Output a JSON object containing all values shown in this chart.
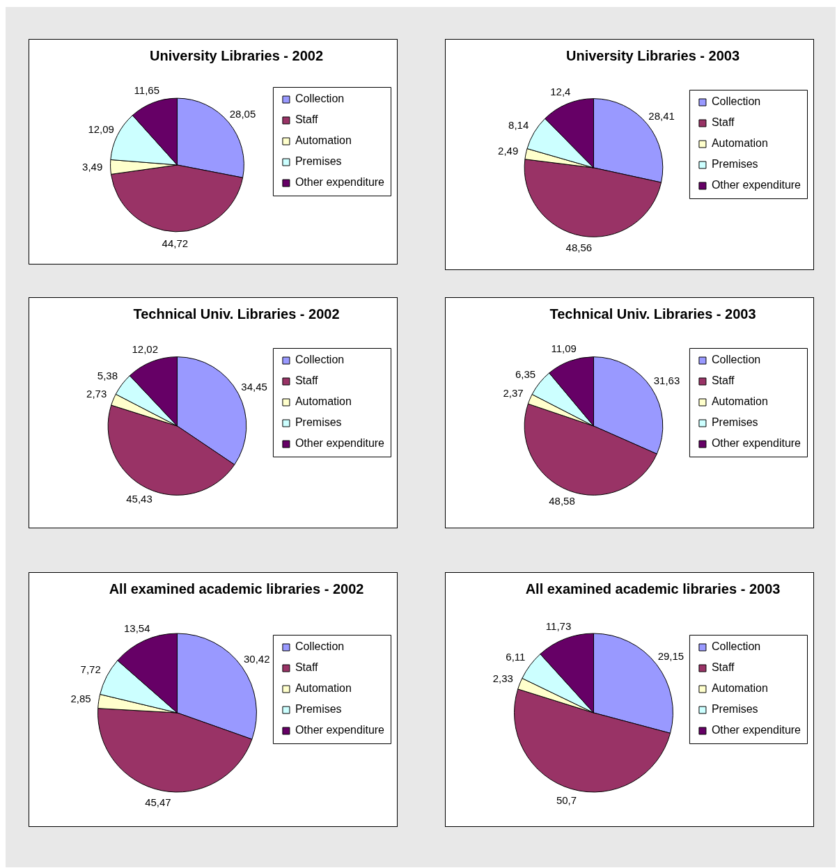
{
  "chart_data": [
    {
      "type": "pie",
      "title": "University Libraries - 2002",
      "categories": [
        "Collection",
        "Staff",
        "Automation",
        "Premises",
        "Other expenditure"
      ],
      "colors": [
        "#9999ff",
        "#993366",
        "#ffffcc",
        "#ccffff",
        "#660066"
      ],
      "values": [
        28.05,
        44.72,
        3.49,
        12.09,
        11.65
      ],
      "value_labels": [
        "28,05",
        "44,72",
        "3,49",
        "12,09",
        "11,65"
      ],
      "legend": "right"
    },
    {
      "type": "pie",
      "title": "University Libraries - 2003",
      "categories": [
        "Collection",
        "Staff",
        "Automation",
        "Premises",
        "Other expenditure"
      ],
      "colors": [
        "#9999ff",
        "#993366",
        "#ffffcc",
        "#ccffff",
        "#660066"
      ],
      "values": [
        28.41,
        48.56,
        2.49,
        8.14,
        12.4
      ],
      "value_labels": [
        "28,41",
        "48,56",
        "2,49",
        "8,14",
        "12,4"
      ],
      "legend": "right"
    },
    {
      "type": "pie",
      "title": "Technical Univ. Libraries - 2002",
      "categories": [
        "Collection",
        "Staff",
        "Automation",
        "Premises",
        "Other expenditure"
      ],
      "colors": [
        "#9999ff",
        "#993366",
        "#ffffcc",
        "#ccffff",
        "#660066"
      ],
      "values": [
        34.45,
        45.43,
        2.73,
        5.38,
        12.02
      ],
      "value_labels": [
        "34,45",
        "45,43",
        "2,73",
        "5,38",
        "12,02"
      ],
      "legend": "right"
    },
    {
      "type": "pie",
      "title": "Technical Univ. Libraries - 2003",
      "categories": [
        "Collection",
        "Staff",
        "Automation",
        "Premises",
        "Other expenditure"
      ],
      "colors": [
        "#9999ff",
        "#993366",
        "#ffffcc",
        "#ccffff",
        "#660066"
      ],
      "values": [
        31.63,
        48.58,
        2.37,
        6.35,
        11.09
      ],
      "value_labels": [
        "31,63",
        "48,58",
        "2,37",
        "6,35",
        "11,09"
      ],
      "legend": "right"
    },
    {
      "type": "pie",
      "title": "All examined academic libraries - 2002",
      "categories": [
        "Collection",
        "Staff",
        "Automation",
        "Premises",
        "Other expenditure"
      ],
      "colors": [
        "#9999ff",
        "#993366",
        "#ffffcc",
        "#ccffff",
        "#660066"
      ],
      "values": [
        30.42,
        45.47,
        2.85,
        7.72,
        13.54
      ],
      "value_labels": [
        "30,42",
        "45,47",
        "2,85",
        "7,72",
        "13,54"
      ],
      "legend": "right"
    },
    {
      "type": "pie",
      "title": "All examined academic libraries - 2003",
      "categories": [
        "Collection",
        "Staff",
        "Automation",
        "Premises",
        "Other expenditure"
      ],
      "colors": [
        "#9999ff",
        "#993366",
        "#ffffcc",
        "#ccffff",
        "#660066"
      ],
      "values": [
        29.15,
        50.7,
        2.33,
        6.11,
        11.73
      ],
      "value_labels": [
        "29,15",
        "50,7",
        "2,33",
        "6,11",
        "11,73"
      ],
      "legend": "right"
    }
  ]
}
